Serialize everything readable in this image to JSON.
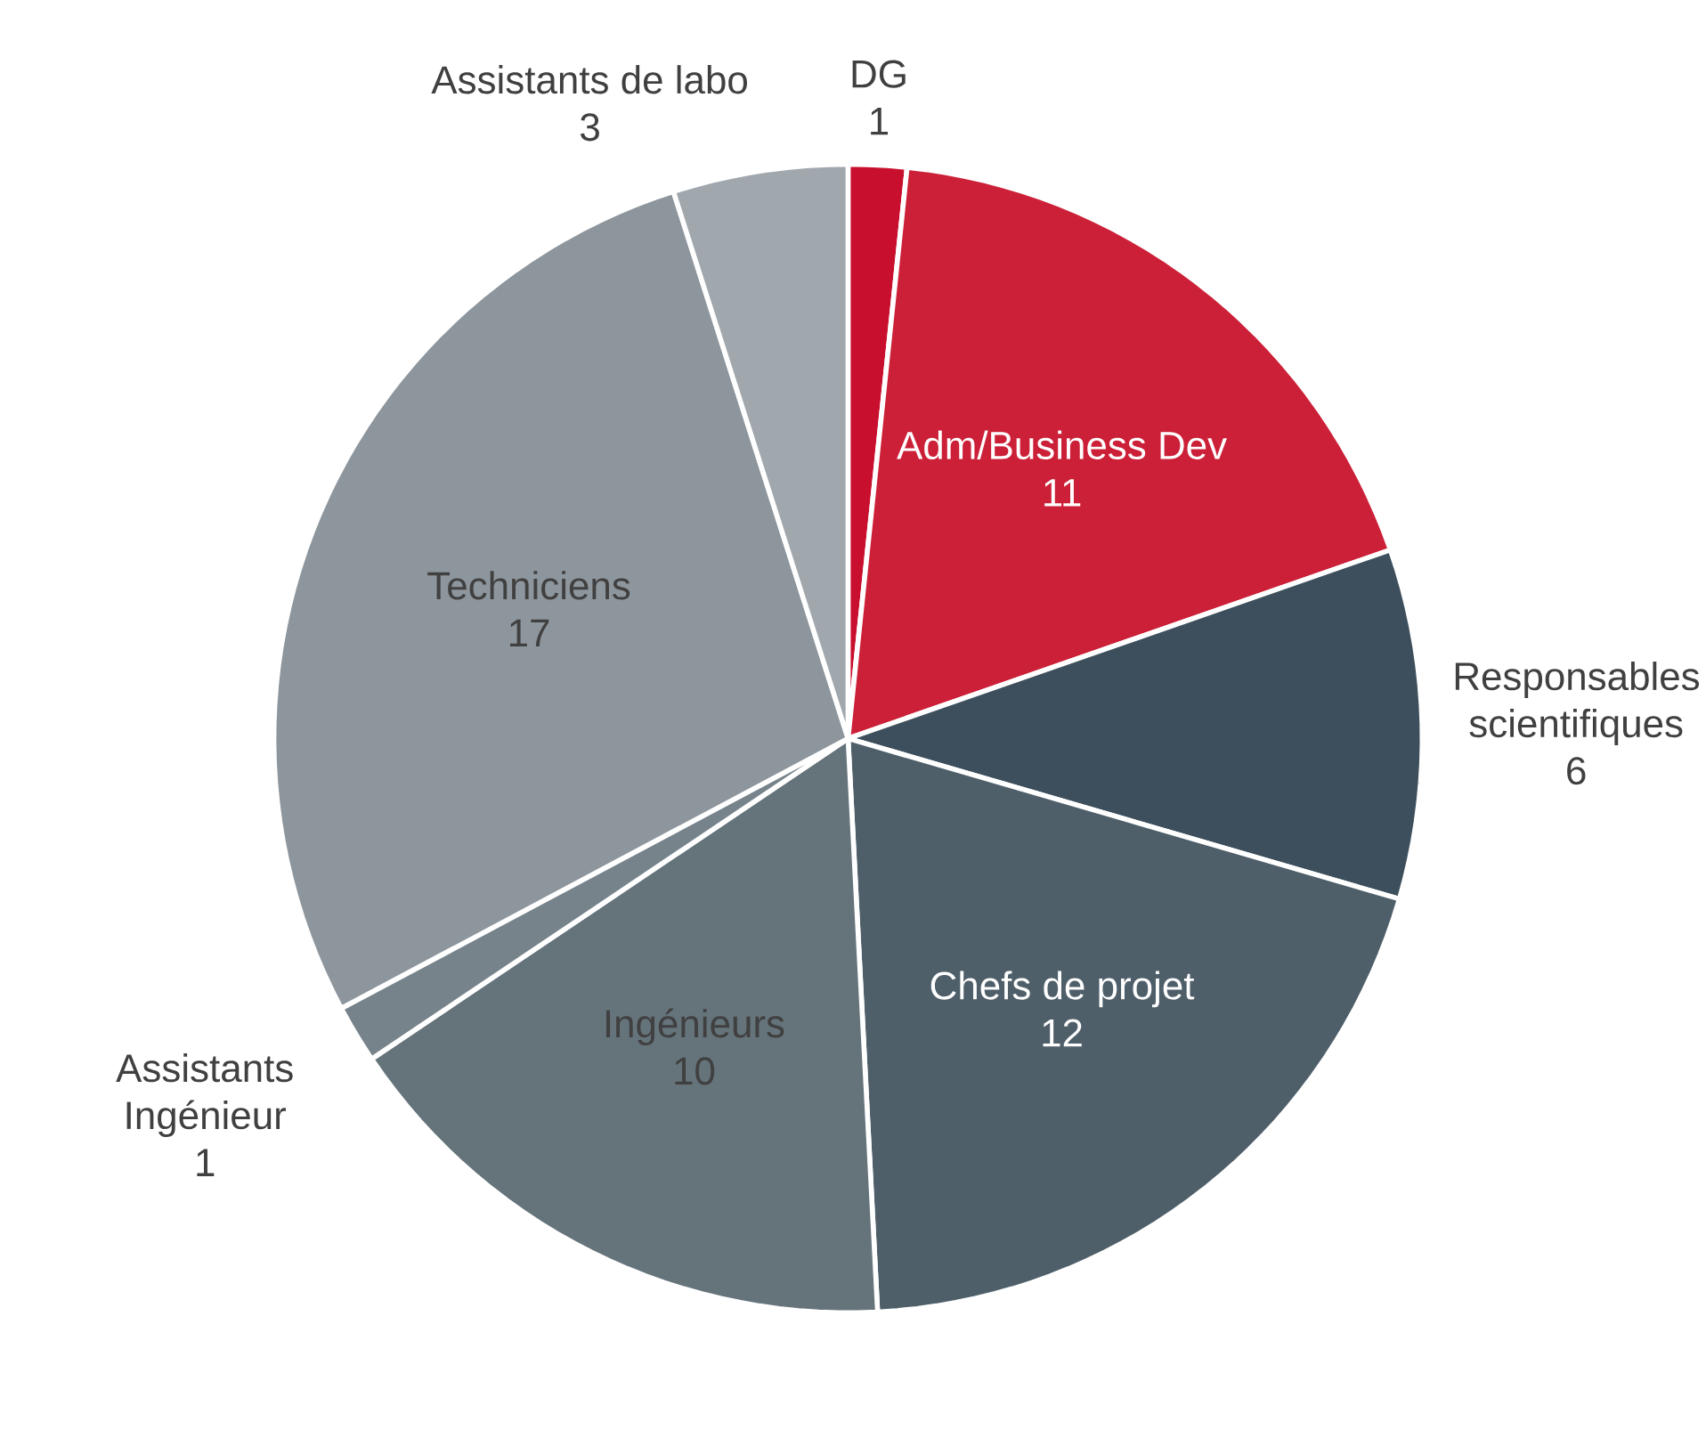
{
  "chart_data": {
    "type": "pie",
    "data_labels": true,
    "categories": [
      "DG",
      "Adm/Business Dev",
      "Responsables scientifiques",
      "Chefs de projet",
      "Ingénieurs",
      "Assistants Ingénieur",
      "Techniciens",
      "Assistants de labo"
    ],
    "values": [
      1,
      11,
      6,
      12,
      10,
      1,
      17,
      3
    ],
    "colors": [
      "#c8102e",
      "#cc2038",
      "#3d4f5c",
      "#4f5f6a",
      "#65737b",
      "#77838b",
      "#8e969d",
      "#a0a7ad"
    ]
  }
}
